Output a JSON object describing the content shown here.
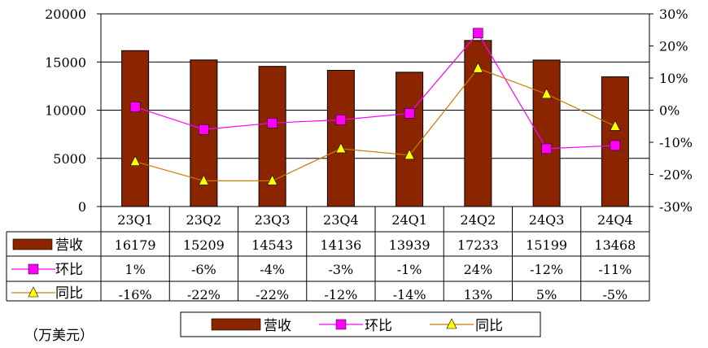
{
  "chart_data": {
    "type": "bar",
    "categories": [
      "23Q1",
      "23Q2",
      "23Q3",
      "23Q4",
      "24Q1",
      "24Q2",
      "24Q3",
      "24Q4"
    ],
    "series": [
      {
        "name": "营收",
        "kind": "bar",
        "axis": "left",
        "color": "#8B2500",
        "values": [
          16179,
          15209,
          14543,
          14136,
          13939,
          17233,
          15199,
          13468
        ]
      },
      {
        "name": "环比",
        "kind": "line",
        "axis": "right",
        "color": "#FF00FF",
        "marker": "square",
        "values": [
          1,
          -6,
          -4,
          -3,
          -1,
          24,
          -12,
          -11
        ],
        "labels": [
          "1%",
          "-6%",
          "-4%",
          "-3%",
          "-1%",
          "24%",
          "-12%",
          "-11%"
        ]
      },
      {
        "name": "同比",
        "kind": "line",
        "axis": "right",
        "color": "#CC7A00",
        "marker": "triangle",
        "marker_color": "#FFFF00",
        "values": [
          -16,
          -22,
          -22,
          -12,
          -14,
          13,
          5,
          -5
        ],
        "labels": [
          "-16%",
          "-22%",
          "-22%",
          "-12%",
          "-14%",
          "13%",
          "5%",
          "-5%"
        ]
      }
    ],
    "y_left": {
      "ticks": [
        "20000",
        "15000",
        "10000",
        "5000",
        "0"
      ],
      "ylim": [
        0,
        20000
      ]
    },
    "y_right": {
      "ticks": [
        "30%",
        "20%",
        "10%",
        "0%",
        "-10%",
        "-20%",
        "-30%"
      ],
      "ylim": [
        -30,
        30
      ]
    },
    "grid": "horizontal",
    "legend": "bottom",
    "unit_note": "（万美元）"
  }
}
